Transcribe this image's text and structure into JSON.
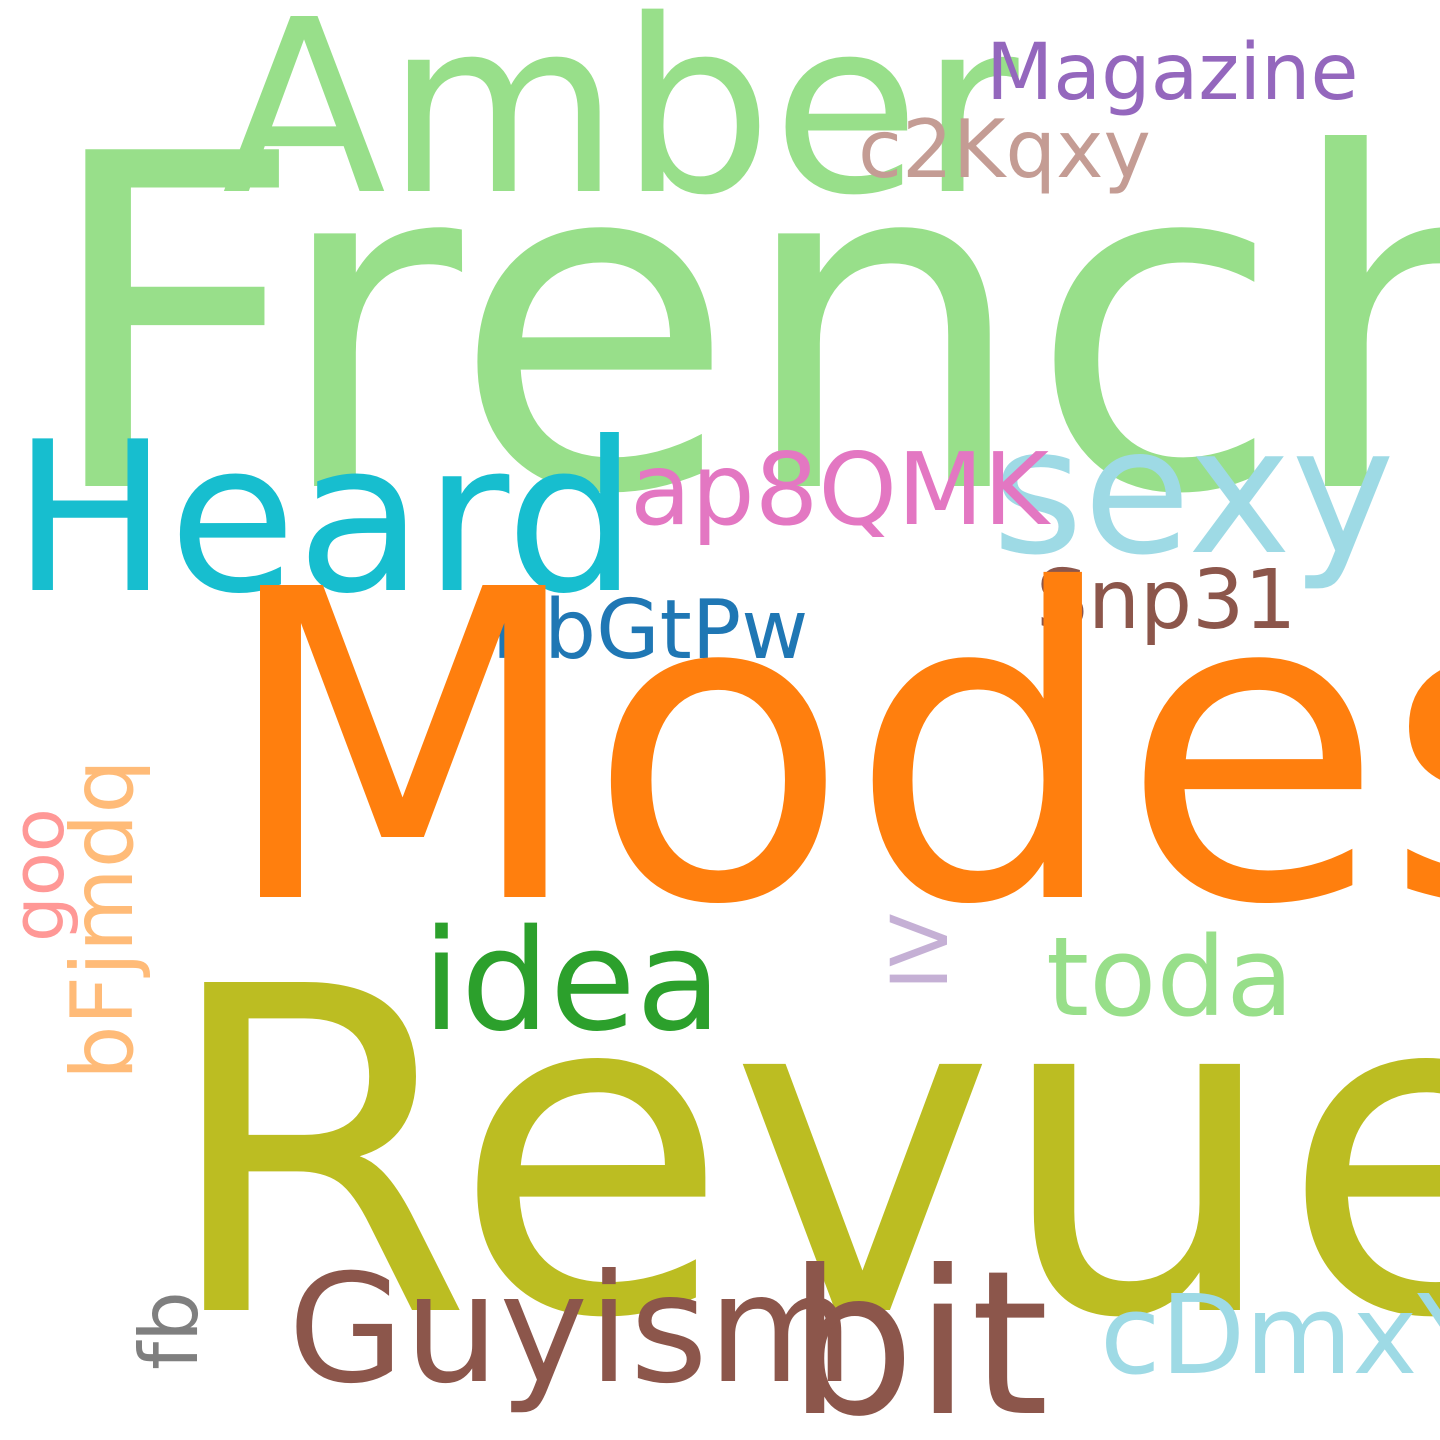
{
  "words": [
    {
      "id": "french",
      "text": "French",
      "color": "#98df8a",
      "rotated": false
    },
    {
      "id": "amber",
      "text": "Amber",
      "color": "#98df8a",
      "rotated": false
    },
    {
      "id": "magazine",
      "text": "Magazine",
      "color": "#9467bd",
      "rotated": false
    },
    {
      "id": "c2kqxy",
      "text": "c2Kqxy",
      "color": "#c49c94",
      "rotated": false
    },
    {
      "id": "heard",
      "text": "Heard",
      "color": "#17becf",
      "rotated": false
    },
    {
      "id": "sexy",
      "text": "sexy",
      "color": "#9edae5",
      "rotated": false
    },
    {
      "id": "ap8qmk",
      "text": "ap8QMK",
      "color": "#e377c2",
      "rotated": false
    },
    {
      "id": "snp31",
      "text": "Snp31",
      "color": "#8c564b",
      "rotated": false
    },
    {
      "id": "bbgtpw",
      "text": "bbGtPw",
      "color": "#1f77b4",
      "rotated": false
    },
    {
      "id": "modes",
      "text": "Modes",
      "color": "#ff7f0e",
      "rotated": false
    },
    {
      "id": "idea",
      "text": "idea",
      "color": "#2ca02c",
      "rotated": false
    },
    {
      "id": "toda",
      "text": "toda",
      "color": "#98df8a",
      "rotated": false
    },
    {
      "id": "iv",
      "text": "IV",
      "color": "#c5b0d5",
      "rotated": true
    },
    {
      "id": "goo",
      "text": "goo",
      "color": "#ff9896",
      "rotated": true
    },
    {
      "id": "bfjmdq",
      "text": "bFjmdq",
      "color": "#ffbb78",
      "rotated": true
    },
    {
      "id": "revue",
      "text": "Revue",
      "color": "#bcbd22",
      "rotated": false
    },
    {
      "id": "fb",
      "text": "fb",
      "color": "#7f7f7f",
      "rotated": true
    },
    {
      "id": "guyism",
      "text": "Guyism",
      "color": "#8c564b",
      "rotated": false
    },
    {
      "id": "bit",
      "text": "bit",
      "color": "#8c564b",
      "rotated": false
    },
    {
      "id": "cdmxyj",
      "text": "cDmxYJ",
      "color": "#9edae5",
      "rotated": false
    }
  ]
}
